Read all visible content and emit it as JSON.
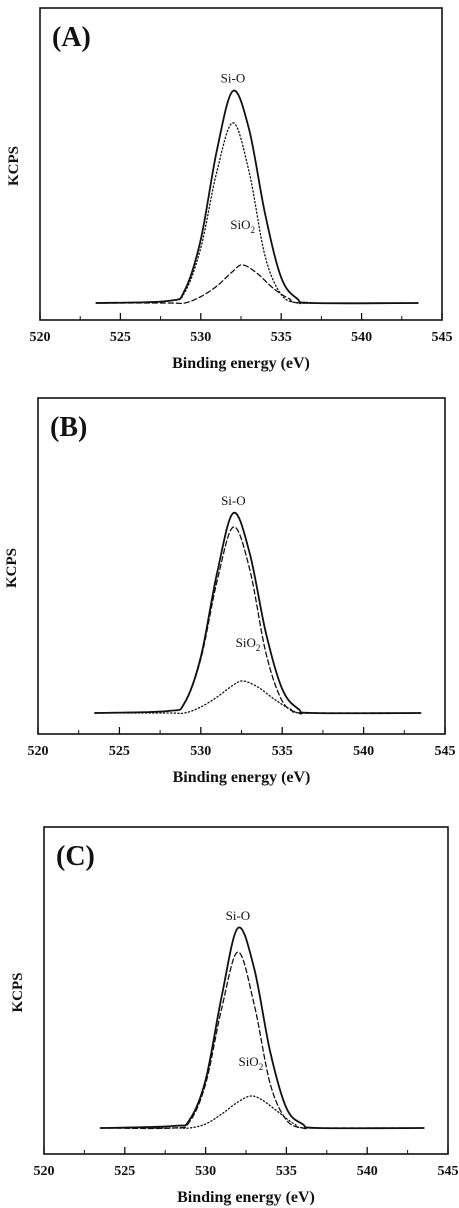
{
  "chart_data": [
    {
      "type": "line",
      "panel_label": "(A)",
      "ylabel": "KCPS",
      "xlabel": "Binding energy (eV)",
      "xlim": [
        520,
        545
      ],
      "x_ticks": [
        "520",
        "525",
        "530",
        "535",
        "540",
        "545"
      ],
      "y_ticks_labeled": false,
      "grid": false,
      "annotations": [
        {
          "text": "Si-O",
          "x": 532.0,
          "y": 1.04
        },
        {
          "text": "SiO",
          "subscript": "2",
          "x": 532.6,
          "y": 0.35
        }
      ],
      "series": [
        {
          "style": "solid",
          "x": [
            523.5,
            528.0,
            529.0,
            530.0,
            531.0,
            532.0,
            533.0,
            534.0,
            535.0,
            536.0,
            537.0,
            543.5
          ],
          "y": [
            0.0,
            0.01,
            0.06,
            0.3,
            0.72,
            1.0,
            0.82,
            0.42,
            0.12,
            0.02,
            0.0,
            0.0
          ]
        },
        {
          "style": "dotted",
          "x": [
            523.5,
            528.0,
            529.0,
            530.0,
            531.0,
            532.0,
            533.0,
            534.0,
            535.0,
            536.0,
            537.0,
            543.5
          ],
          "y": [
            0.0,
            0.01,
            0.05,
            0.26,
            0.62,
            0.85,
            0.62,
            0.22,
            0.04,
            0.0,
            0.0,
            0.0
          ]
        },
        {
          "style": "dashed",
          "x": [
            523.5,
            528.0,
            529.0,
            530.0,
            531.0,
            532.0,
            532.6,
            533.5,
            534.5,
            535.5,
            536.5,
            543.5
          ],
          "y": [
            0.0,
            0.0,
            0.0,
            0.03,
            0.08,
            0.15,
            0.18,
            0.14,
            0.07,
            0.02,
            0.0,
            0.0
          ]
        }
      ]
    },
    {
      "type": "line",
      "panel_label": "(B)",
      "ylabel": "KCPS",
      "xlabel": "Binding energy (eV)",
      "xlim": [
        520,
        545
      ],
      "x_ticks": [
        "520",
        "525",
        "530",
        "535",
        "540",
        "545"
      ],
      "y_ticks_labeled": false,
      "grid": false,
      "annotations": [
        {
          "text": "Si-O",
          "x": 532.0,
          "y": 1.04
        },
        {
          "text": "SiO",
          "subscript": "2",
          "x": 532.9,
          "y": 0.33
        }
      ],
      "series": [
        {
          "style": "solid",
          "x": [
            523.5,
            528.0,
            529.0,
            530.0,
            531.0,
            532.0,
            533.0,
            534.0,
            535.0,
            536.0,
            537.0,
            543.5
          ],
          "y": [
            0.0,
            0.01,
            0.05,
            0.28,
            0.7,
            1.0,
            0.8,
            0.4,
            0.12,
            0.02,
            0.0,
            0.0
          ]
        },
        {
          "style": "dashed",
          "x": [
            523.5,
            528.0,
            529.0,
            530.0,
            531.0,
            532.0,
            533.0,
            534.0,
            535.0,
            536.0,
            537.0,
            543.5
          ],
          "y": [
            0.0,
            0.01,
            0.05,
            0.27,
            0.66,
            0.93,
            0.72,
            0.3,
            0.06,
            0.0,
            0.0,
            0.0
          ]
        },
        {
          "style": "dotted",
          "x": [
            523.5,
            528.0,
            529.0,
            530.0,
            531.0,
            532.0,
            532.6,
            533.5,
            534.5,
            535.5,
            536.5,
            543.5
          ],
          "y": [
            0.0,
            0.0,
            0.0,
            0.03,
            0.08,
            0.14,
            0.16,
            0.13,
            0.07,
            0.02,
            0.0,
            0.0
          ]
        }
      ]
    },
    {
      "type": "line",
      "panel_label": "(C)",
      "ylabel": "KCPS",
      "xlabel": "Binding energy (eV)",
      "xlim": [
        520,
        545
      ],
      "x_ticks": [
        "520",
        "525",
        "530",
        "535",
        "540",
        "545"
      ],
      "y_ticks_labeled": false,
      "grid": false,
      "annotations": [
        {
          "text": "Si-O",
          "x": 532.0,
          "y": 1.04
        },
        {
          "text": "SiO",
          "subscript": "2",
          "x": 532.8,
          "y": 0.31
        }
      ],
      "series": [
        {
          "style": "solid",
          "x": [
            523.5,
            528.0,
            529.0,
            530.0,
            531.0,
            532.0,
            533.0,
            534.0,
            535.0,
            536.0,
            537.0,
            543.5
          ],
          "y": [
            0.0,
            0.01,
            0.04,
            0.24,
            0.66,
            1.0,
            0.8,
            0.38,
            0.1,
            0.02,
            0.0,
            0.0
          ]
        },
        {
          "style": "dashed",
          "x": [
            523.5,
            528.0,
            529.0,
            530.0,
            531.0,
            532.0,
            533.0,
            534.0,
            535.0,
            536.0,
            537.0,
            543.5
          ],
          "y": [
            0.0,
            0.0,
            0.03,
            0.22,
            0.6,
            0.88,
            0.62,
            0.22,
            0.04,
            0.0,
            0.0,
            0.0
          ]
        },
        {
          "style": "dotted",
          "x": [
            523.5,
            528.0,
            529.0,
            530.0,
            531.0,
            532.0,
            532.8,
            533.5,
            534.5,
            535.5,
            536.5,
            543.5
          ],
          "y": [
            0.0,
            0.0,
            0.0,
            0.02,
            0.07,
            0.13,
            0.16,
            0.14,
            0.08,
            0.02,
            0.0,
            0.0
          ]
        }
      ]
    }
  ]
}
